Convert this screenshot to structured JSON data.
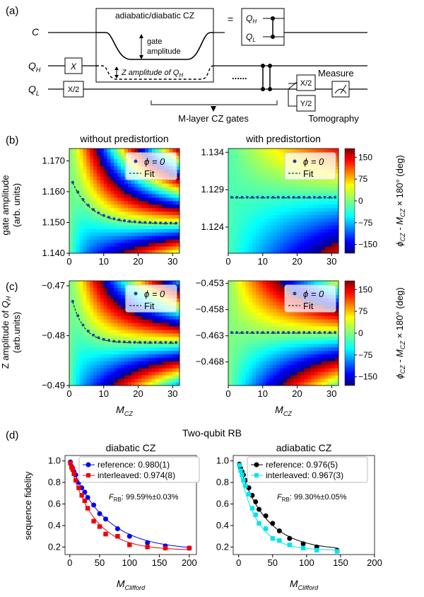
{
  "panel_labels": {
    "a": "(a)",
    "b": "(b)",
    "c": "(c)",
    "d": "(d)"
  },
  "circuit": {
    "line_C": "C",
    "line_QH": "Q",
    "line_QL": "Q",
    "sub_H": "H",
    "sub_L": "L",
    "box_title": "adiabatic/diabatic CZ",
    "equals": "=",
    "gate_amp_1": "gate",
    "gate_amp_2": "amplitude",
    "z_amp": "Z amplitude of Q",
    "dots": "......",
    "x_gate": "X",
    "x2_gate": "X/2",
    "x2_tomo": "X/2",
    "y2_tomo": "Y/2",
    "measure": "Measure",
    "brace_label": "M-layer CZ gates",
    "tomography": "Tomography"
  },
  "colorbar": {
    "ticks": [
      "150",
      "75",
      "0",
      "−75",
      "−150"
    ],
    "label": "ϕ_CZ - M_CZ × 180° (deg)"
  },
  "chart_data": [
    {
      "id": "b-left",
      "type": "heatmap",
      "title": "without predistortion",
      "ylabel": "gate amplitude",
      "ylabel2": "(arb. units)",
      "xlabel": "",
      "xticks": [
        "0",
        "10",
        "20",
        "30"
      ],
      "yticks": [
        "1.170",
        "1.160",
        "1.150",
        "1.140"
      ],
      "ylim": [
        1.14,
        1.174
      ],
      "xlim": [
        0,
        32
      ],
      "legend": [
        "ϕ = 0",
        "Fit"
      ]
    },
    {
      "id": "b-right",
      "type": "heatmap",
      "title": "with predistortion",
      "xlabel": "",
      "xticks": [
        "0",
        "10",
        "20",
        "30"
      ],
      "yticks": [
        "1.134",
        "1.129",
        "1.124"
      ],
      "ylim": [
        1.1205,
        1.1345
      ],
      "xlim": [
        0,
        32
      ],
      "legend": [
        "ϕ = 0",
        "Fit"
      ]
    },
    {
      "id": "c-left",
      "type": "heatmap",
      "ylabel": "Z amplitude of Q_H",
      "ylabel2": "(arb.units)",
      "xlabel": "M_CZ",
      "xticks": [
        "0",
        "10",
        "20",
        "30"
      ],
      "yticks": [
        "−0.47",
        "−0.48",
        "−0.49"
      ],
      "ylim": [
        -0.49,
        -0.469
      ],
      "xlim": [
        0,
        32
      ],
      "legend": [
        "ϕ = 0",
        "Fit"
      ]
    },
    {
      "id": "c-right",
      "type": "heatmap",
      "xlabel": "M_CZ",
      "xticks": [
        "0",
        "10",
        "20",
        "30"
      ],
      "yticks": [
        "−0.453",
        "−0.458",
        "−0.463",
        "−0.468"
      ],
      "ylim": [
        -0.4725,
        -0.4525
      ],
      "xlim": [
        0,
        32
      ],
      "legend": [
        "ϕ = 0",
        "Fit"
      ]
    },
    {
      "id": "d-left",
      "type": "scatter",
      "title": "diabatic CZ",
      "ylabel": "sequence fidelity",
      "xlabel": "M_Clifford",
      "xticks": [
        "0",
        "50",
        "100",
        "150",
        "200"
      ],
      "yticks": [
        "1.0",
        "0.8",
        "0.6",
        "0.4",
        "0.2"
      ],
      "xlim": [
        -8,
        212
      ],
      "ylim": [
        0.13,
        1.05
      ],
      "series": [
        {
          "name": "reference: 0.980(1)",
          "color": "#0000ee",
          "x": [
            1,
            3,
            5,
            7,
            10,
            15,
            20,
            25,
            30,
            40,
            50,
            60,
            80,
            100,
            130,
            160,
            200
          ],
          "y": [
            0.99,
            0.95,
            0.93,
            0.9,
            0.87,
            0.8,
            0.75,
            0.71,
            0.66,
            0.59,
            0.51,
            0.46,
            0.37,
            0.3,
            0.24,
            0.21,
            0.19
          ]
        },
        {
          "name": "interleaved: 0.974(8)",
          "color": "#ee0000",
          "x": [
            1,
            3,
            5,
            7,
            10,
            15,
            20,
            25,
            30,
            40,
            50,
            60,
            80,
            100,
            130,
            160,
            200
          ],
          "y": [
            0.98,
            0.94,
            0.92,
            0.88,
            0.82,
            0.75,
            0.68,
            0.63,
            0.56,
            0.44,
            0.39,
            0.32,
            0.3,
            0.22,
            0.2,
            0.19,
            0.19
          ]
        }
      ],
      "annotation": "F_RB: 99.59%±0.03%"
    },
    {
      "id": "d-right",
      "type": "scatter",
      "title": "adiabatic CZ",
      "xlabel": "M_Clifford",
      "xticks": [
        "0",
        "50",
        "100",
        "150",
        "200"
      ],
      "yticks": [
        "1.0",
        "0.8",
        "0.6",
        "0.4",
        "0.2"
      ],
      "xlim": [
        -8,
        200
      ],
      "ylim": [
        0.13,
        1.05
      ],
      "series": [
        {
          "name": "reference: 0.976(5)",
          "color": "#000000",
          "x": [
            1,
            3,
            5,
            7,
            10,
            15,
            20,
            25,
            30,
            40,
            50,
            60,
            75,
            95,
            115,
            145
          ],
          "y": [
            0.97,
            0.93,
            0.9,
            0.87,
            0.82,
            0.75,
            0.68,
            0.62,
            0.55,
            0.49,
            0.42,
            0.35,
            0.28,
            0.23,
            0.2,
            0.17
          ]
        },
        {
          "name": "interleaved: 0.967(3)",
          "color": "#00e5ee",
          "x": [
            1,
            3,
            5,
            7,
            10,
            15,
            20,
            25,
            30,
            40,
            50,
            60,
            75,
            95,
            115,
            145
          ],
          "y": [
            0.96,
            0.91,
            0.87,
            0.82,
            0.77,
            0.69,
            0.56,
            0.5,
            0.42,
            0.37,
            0.28,
            0.26,
            0.22,
            0.19,
            0.17,
            0.16
          ]
        }
      ],
      "annotation": "F_RB: 99.30%±0.05%"
    }
  ],
  "rb_title": "Two-qubit RB"
}
